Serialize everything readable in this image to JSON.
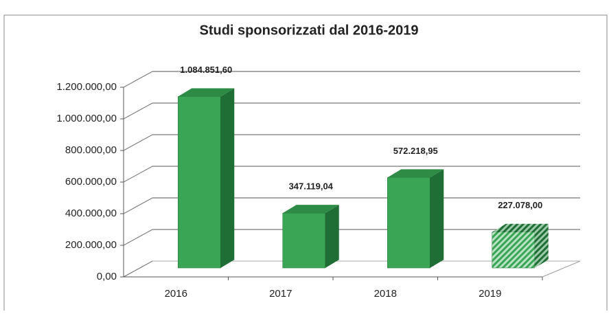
{
  "chart_data": {
    "type": "bar3d",
    "title": "Studi sponsorizzati dal 2016-2019",
    "categories": [
      "2016",
      "2017",
      "2018",
      "2019"
    ],
    "values": [
      1084851.6,
      347119.04,
      572218.95,
      227078
    ],
    "value_labels": [
      "1.084.851,60",
      "347.119,04",
      "572.218,95",
      "227.078,00"
    ],
    "color": "#3aa655",
    "hatched": [
      false,
      false,
      false,
      true
    ],
    "ylim": [
      0,
      1200000
    ],
    "yticks": [
      {
        "value": 0,
        "label": "0,00"
      },
      {
        "value": 200000,
        "label": "200.000,00"
      },
      {
        "value": 400000,
        "label": "400.000,00"
      },
      {
        "value": 600000,
        "label": "600.000,00"
      },
      {
        "value": 800000,
        "label": "800.000,00"
      },
      {
        "value": 1000000,
        "label": "1.000.000,00"
      },
      {
        "value": 1200000,
        "label": "1.200.000,00"
      }
    ],
    "grid": true
  }
}
